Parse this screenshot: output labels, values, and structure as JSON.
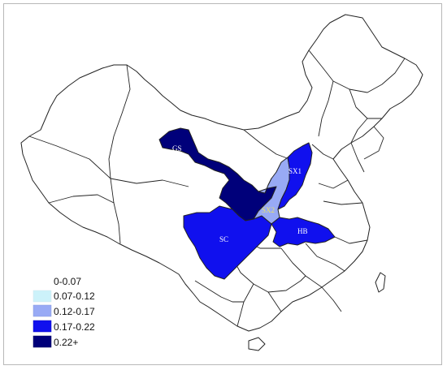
{
  "legend": {
    "items": [
      {
        "label": "0-0.07",
        "color": "#ffffff"
      },
      {
        "label": "0.07-0.12",
        "color": "#ccf2fa"
      },
      {
        "label": "0.12-0.17",
        "color": "#98aaf5"
      },
      {
        "label": "0.17-0.22",
        "color": "#1010ee"
      },
      {
        "label": "0.22+",
        "color": "#00007a"
      }
    ]
  },
  "regions": {
    "GS": {
      "label": "GS",
      "bin": "0.22+"
    },
    "SX1": {
      "label": "SX1",
      "bin": "0.17-0.22"
    },
    "SX2": {
      "label": "SX2",
      "bin": "0.12-0.17"
    },
    "SC": {
      "label": "SC",
      "bin": "0.17-0.22"
    },
    "HB": {
      "label": "HB",
      "bin": "0.17-0.22"
    }
  },
  "colors": {
    "outline": "#222222",
    "label_light": "#ffffff",
    "label_sx2": "#e9e36a"
  }
}
